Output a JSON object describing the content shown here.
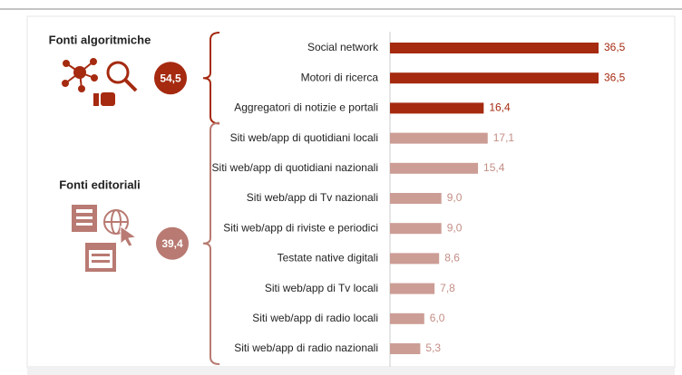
{
  "chart_data": {
    "type": "bar",
    "groups": [
      {
        "name": "Fonti algoritmiche",
        "total": 54.5,
        "total_label": "54,5",
        "color": "#a52a10",
        "label_color": "#a52a10",
        "circle_color": "#a52a10",
        "categories": [
          "Social network",
          "Motori di ricerca",
          "Aggregatori di notizie e portali"
        ],
        "values": [
          36.5,
          36.5,
          16.4
        ],
        "value_labels": [
          "36,5",
          "36,5",
          "16,4"
        ]
      },
      {
        "name": "Fonti editoriali",
        "total": 39.4,
        "total_label": "39,4",
        "color": "#cc9d95",
        "label_color": "#c48e86",
        "circle_color": "#b87a72",
        "categories": [
          "Siti web/app di quotidiani locali",
          "Siti web/app di quotidiani nazionali",
          "Siti web/app di Tv nazionali",
          "Siti web/app di riviste e periodici",
          "Testate native digitali",
          "Siti web/app di Tv locali",
          "Siti web/app di radio locali",
          "Siti web/app di radio nazionali"
        ],
        "values": [
          17.1,
          15.4,
          9.0,
          9.0,
          8.6,
          7.8,
          6.0,
          5.3
        ],
        "value_labels": [
          "17,1",
          "15,4",
          "9,0",
          "9,0",
          "8,6",
          "7,8",
          "6,0",
          "5,3"
        ]
      }
    ]
  }
}
